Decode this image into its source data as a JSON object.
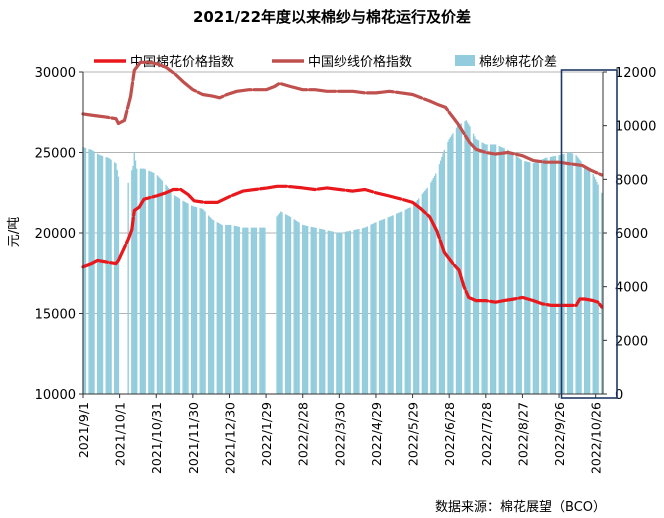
{
  "chart_data": {
    "type": "bar+line",
    "title": "2021/22年度以来棉纱与棉花运行及价差",
    "ylabel_left": "元/吨",
    "yrange_left": [
      10000,
      30000
    ],
    "yticks_left": [
      "10000",
      "15000",
      "20000",
      "25000",
      "30000"
    ],
    "yrange_right": [
      0,
      12000
    ],
    "yticks_right": [
      "0",
      "2000",
      "4000",
      "6000",
      "8000",
      "10000",
      "12000"
    ],
    "x_tick_labels": [
      "2021/9/1",
      "2021/10/1",
      "2021/10/31",
      "2021/11/30",
      "2021/12/30",
      "2022/1/29",
      "2022/2/28",
      "2022/3/30",
      "2022/4/29",
      "2022/5/29",
      "2022/6/28",
      "2022/7/28",
      "2022/8/27",
      "2022/9/26",
      "2022/10/26"
    ],
    "x_range": [
      "2021-09-01",
      "2022-11-01"
    ],
    "gridlines": "horizontal",
    "legend_position": "top",
    "highlight_box": [
      "2022-09-28",
      "2022-11-02"
    ],
    "source_note": "数据来源：棉花展望（BCO）",
    "series": [
      {
        "name": "中国棉花价格指数",
        "kind": "line",
        "axis": "left",
        "color": "#e8181c",
        "points": [
          [
            "2021-09-01",
            17900
          ],
          [
            "2021-09-08",
            18100
          ],
          [
            "2021-09-13",
            18300
          ],
          [
            "2021-09-20",
            18200
          ],
          [
            "2021-09-28",
            18100
          ],
          [
            "2021-09-30",
            18300
          ],
          [
            "2021-10-08",
            19600
          ],
          [
            "2021-10-11",
            20200
          ],
          [
            "2021-10-13",
            21400
          ],
          [
            "2021-10-17",
            21600
          ],
          [
            "2021-10-21",
            22100
          ],
          [
            "2021-10-31",
            22300
          ],
          [
            "2021-11-08",
            22500
          ],
          [
            "2021-11-14",
            22700
          ],
          [
            "2021-11-20",
            22700
          ],
          [
            "2021-11-26",
            22400
          ],
          [
            "2021-12-01",
            22000
          ],
          [
            "2021-12-10",
            21900
          ],
          [
            "2021-12-20",
            21900
          ],
          [
            "2021-12-31",
            22300
          ],
          [
            "2022-01-10",
            22600
          ],
          [
            "2022-01-20",
            22700
          ],
          [
            "2022-01-30",
            22800
          ],
          [
            "2022-02-07",
            22900
          ],
          [
            "2022-02-15",
            22900
          ],
          [
            "2022-02-28",
            22800
          ],
          [
            "2022-03-10",
            22700
          ],
          [
            "2022-03-20",
            22800
          ],
          [
            "2022-03-30",
            22700
          ],
          [
            "2022-04-10",
            22600
          ],
          [
            "2022-04-20",
            22700
          ],
          [
            "2022-04-29",
            22500
          ],
          [
            "2022-05-10",
            22300
          ],
          [
            "2022-05-20",
            22100
          ],
          [
            "2022-05-29",
            21900
          ],
          [
            "2022-06-05",
            21500
          ],
          [
            "2022-06-12",
            21000
          ],
          [
            "2022-06-18",
            20100
          ],
          [
            "2022-06-24",
            18800
          ],
          [
            "2022-07-01",
            18100
          ],
          [
            "2022-07-06",
            17700
          ],
          [
            "2022-07-10",
            16700
          ],
          [
            "2022-07-14",
            16000
          ],
          [
            "2022-07-20",
            15800
          ],
          [
            "2022-07-28",
            15800
          ],
          [
            "2022-08-05",
            15700
          ],
          [
            "2022-08-12",
            15800
          ],
          [
            "2022-08-20",
            15900
          ],
          [
            "2022-08-27",
            16000
          ],
          [
            "2022-09-05",
            15800
          ],
          [
            "2022-09-12",
            15600
          ],
          [
            "2022-09-20",
            15500
          ],
          [
            "2022-09-26",
            15500
          ],
          [
            "2022-10-05",
            15500
          ],
          [
            "2022-10-10",
            15500
          ],
          [
            "2022-10-13",
            15900
          ],
          [
            "2022-10-17",
            15900
          ],
          [
            "2022-10-24",
            15800
          ],
          [
            "2022-10-28",
            15700
          ],
          [
            "2022-10-31",
            15400
          ]
        ]
      },
      {
        "name": "中国纱线价格指数",
        "kind": "line",
        "axis": "left",
        "color": "#c0504d",
        "points": [
          [
            "2021-09-01",
            27400
          ],
          [
            "2021-09-10",
            27300
          ],
          [
            "2021-09-20",
            27200
          ],
          [
            "2021-09-28",
            27100
          ],
          [
            "2021-09-30",
            26800
          ],
          [
            "2021-10-05",
            27000
          ],
          [
            "2021-10-10",
            28500
          ],
          [
            "2021-10-13",
            30100
          ],
          [
            "2021-10-18",
            30600
          ],
          [
            "2021-10-25",
            30600
          ],
          [
            "2021-11-01",
            30500
          ],
          [
            "2021-11-08",
            30300
          ],
          [
            "2021-11-15",
            29900
          ],
          [
            "2021-11-22",
            29400
          ],
          [
            "2021-11-30",
            28900
          ],
          [
            "2021-12-08",
            28600
          ],
          [
            "2021-12-16",
            28500
          ],
          [
            "2021-12-22",
            28400
          ],
          [
            "2021-12-28",
            28600
          ],
          [
            "2022-01-05",
            28800
          ],
          [
            "2022-01-15",
            28900
          ],
          [
            "2022-01-29",
            28900
          ],
          [
            "2022-02-05",
            29100
          ],
          [
            "2022-02-09",
            29300
          ],
          [
            "2022-02-18",
            29100
          ],
          [
            "2022-02-28",
            28900
          ],
          [
            "2022-03-10",
            28900
          ],
          [
            "2022-03-20",
            28800
          ],
          [
            "2022-03-30",
            28800
          ],
          [
            "2022-04-10",
            28800
          ],
          [
            "2022-04-20",
            28700
          ],
          [
            "2022-04-29",
            28700
          ],
          [
            "2022-05-10",
            28800
          ],
          [
            "2022-05-20",
            28700
          ],
          [
            "2022-05-29",
            28600
          ],
          [
            "2022-06-05",
            28400
          ],
          [
            "2022-06-12",
            28200
          ],
          [
            "2022-06-18",
            28000
          ],
          [
            "2022-06-25",
            27800
          ],
          [
            "2022-06-28",
            27500
          ],
          [
            "2022-07-05",
            26800
          ],
          [
            "2022-07-10",
            26200
          ],
          [
            "2022-07-15",
            25600
          ],
          [
            "2022-07-20",
            25200
          ],
          [
            "2022-07-28",
            25000
          ],
          [
            "2022-08-05",
            24900
          ],
          [
            "2022-08-15",
            25000
          ],
          [
            "2022-08-27",
            24800
          ],
          [
            "2022-09-05",
            24500
          ],
          [
            "2022-09-15",
            24400
          ],
          [
            "2022-09-26",
            24400
          ],
          [
            "2022-10-05",
            24300
          ],
          [
            "2022-10-15",
            24200
          ],
          [
            "2022-10-22",
            23900
          ],
          [
            "2022-10-28",
            23700
          ],
          [
            "2022-10-31",
            23600
          ]
        ]
      },
      {
        "name": "棉纱棉花价差",
        "kind": "bar",
        "axis": "right",
        "color": "#93cddd",
        "points": [
          [
            "2021-09-01",
            9200
          ],
          [
            "2021-09-08",
            9100
          ],
          [
            "2021-09-15",
            8900
          ],
          [
            "2021-09-22",
            8800
          ],
          [
            "2021-09-28",
            8600
          ],
          [
            "2021-09-30",
            8100
          ],
          [
            "2021-10-05",
            7400
          ],
          [
            "2021-10-12",
            8500
          ],
          [
            "2021-10-13",
            9000
          ],
          [
            "2021-10-15",
            8400
          ],
          [
            "2021-10-21",
            8400
          ],
          [
            "2021-10-31",
            8200
          ],
          [
            "2021-11-08",
            7800
          ],
          [
            "2021-11-15",
            7400
          ],
          [
            "2021-11-22",
            7200
          ],
          [
            "2021-11-30",
            7000
          ],
          [
            "2021-12-08",
            6900
          ],
          [
            "2021-12-16",
            6500
          ],
          [
            "2021-12-24",
            6300
          ],
          [
            "2021-12-31",
            6300
          ],
          [
            "2022-01-10",
            6200
          ],
          [
            "2022-01-20",
            6200
          ],
          [
            "2022-01-29",
            6200
          ],
          [
            "2022-02-05",
            6500
          ],
          [
            "2022-02-10",
            6800
          ],
          [
            "2022-02-18",
            6600
          ],
          [
            "2022-02-28",
            6300
          ],
          [
            "2022-03-10",
            6200
          ],
          [
            "2022-03-20",
            6100
          ],
          [
            "2022-03-30",
            6000
          ],
          [
            "2022-04-10",
            6100
          ],
          [
            "2022-04-20",
            6200
          ],
          [
            "2022-04-29",
            6400
          ],
          [
            "2022-05-10",
            6600
          ],
          [
            "2022-05-20",
            6800
          ],
          [
            "2022-05-29",
            7000
          ],
          [
            "2022-06-05",
            7400
          ],
          [
            "2022-06-12",
            7800
          ],
          [
            "2022-06-18",
            8300
          ],
          [
            "2022-06-24",
            9100
          ],
          [
            "2022-06-28",
            9500
          ],
          [
            "2022-07-05",
            10000
          ],
          [
            "2022-07-12",
            10200
          ],
          [
            "2022-07-16",
            9900
          ],
          [
            "2022-07-20",
            9500
          ],
          [
            "2022-07-28",
            9300
          ],
          [
            "2022-08-05",
            9300
          ],
          [
            "2022-08-15",
            9100
          ],
          [
            "2022-08-27",
            8700
          ],
          [
            "2022-09-05",
            8600
          ],
          [
            "2022-09-15",
            8800
          ],
          [
            "2022-09-26",
            8900
          ],
          [
            "2022-10-05",
            9000
          ],
          [
            "2022-10-10",
            8900
          ],
          [
            "2022-10-17",
            8500
          ],
          [
            "2022-10-24",
            8200
          ],
          [
            "2022-10-31",
            7500
          ]
        ]
      }
    ]
  }
}
